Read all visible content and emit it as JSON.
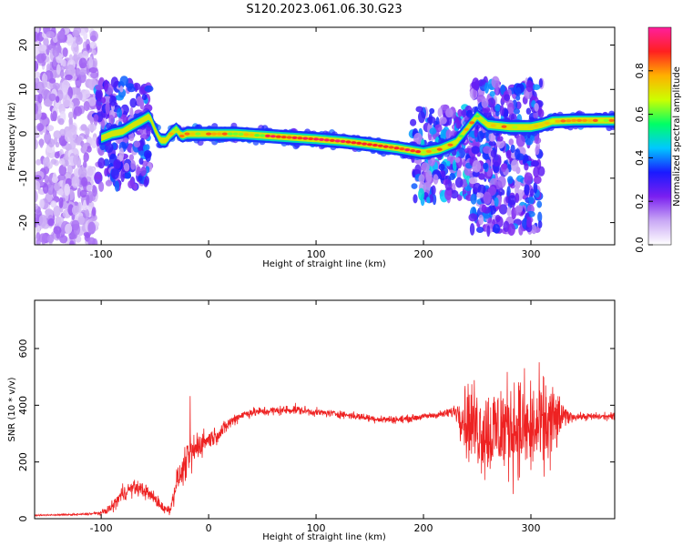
{
  "title": "S120.2023.061.06.30.G23",
  "colors": {
    "snr_line": "#ee2222",
    "colorbar_stops": [
      "#ffffff",
      "#c9a8f5",
      "#7a1ff0",
      "#1a1aff",
      "#00c8ff",
      "#00ff66",
      "#ccff00",
      "#ffb000",
      "#ff2020",
      "#ff1f9e"
    ]
  },
  "chart_data": [
    {
      "type": "heatmap",
      "xlabel": "Height of straight line (km)",
      "ylabel": "Frequency (Hz)",
      "xlim": [
        -162,
        378
      ],
      "ylim": [
        -25,
        24
      ],
      "x_ticks": [
        -100,
        0,
        100,
        200,
        300
      ],
      "y_ticks": [
        -20,
        -10,
        0,
        10,
        20
      ],
      "colorbar": {
        "label": "Normalized spectral amplitude",
        "range": [
          0,
          1
        ],
        "ticks": [
          0.0,
          0.2,
          0.4,
          0.6,
          0.8
        ]
      },
      "ridge": {
        "x": [
          -100,
          -90,
          -80,
          -70,
          -62,
          -55,
          -50,
          -45,
          -40,
          -35,
          -30,
          -25,
          -20,
          -10,
          0,
          25,
          50,
          75,
          100,
          125,
          150,
          175,
          200,
          215,
          230,
          240,
          250,
          260,
          280,
          300,
          310,
          320,
          340,
          378
        ],
        "y": [
          -1,
          0,
          0.5,
          2,
          3,
          4,
          1,
          -1.5,
          -1.5,
          0,
          1,
          -0.5,
          0,
          0,
          0,
          0,
          -0.4,
          -0.8,
          -1.2,
          -1.7,
          -2.4,
          -3.2,
          -4.2,
          -3.5,
          -2,
          1,
          4,
          2,
          1.5,
          1.5,
          2,
          2.8,
          3,
          3
        ]
      },
      "noise_regions": [
        {
          "x": [
            -162,
            -105
          ],
          "y": [
            -25,
            24
          ],
          "level": 0.15
        },
        {
          "x": [
            -105,
            -55
          ],
          "y": [
            -12,
            12
          ],
          "level": 0.35
        },
        {
          "x": [
            190,
            245
          ],
          "y": [
            -15,
            6
          ],
          "level": 0.4
        },
        {
          "x": [
            245,
            310
          ],
          "y": [
            -22,
            12
          ],
          "level": 0.35
        }
      ]
    },
    {
      "type": "line",
      "xlabel": "Height of straight line (km)",
      "ylabel": "SNR (10 * v/v)",
      "xlim": [
        -162,
        378
      ],
      "ylim": [
        0,
        770
      ],
      "x_ticks": [
        -100,
        0,
        100,
        200,
        300
      ],
      "y_ticks": [
        0,
        200,
        400,
        600
      ],
      "series": [
        {
          "x": [
            -162,
            -120,
            -100,
            -90,
            -80,
            -70,
            -60,
            -50,
            -40,
            -35,
            -30,
            -25,
            -20,
            -15,
            -10,
            0,
            10,
            20,
            30,
            40,
            60,
            80,
            100,
            120,
            140,
            160,
            180,
            200,
            220,
            230,
            240,
            260,
            280,
            300,
            320,
            330,
            340,
            360,
            378
          ],
          "values": [
            12,
            15,
            20,
            40,
            90,
            110,
            100,
            70,
            30,
            40,
            130,
            160,
            210,
            230,
            260,
            280,
            300,
            340,
            365,
            375,
            380,
            385,
            375,
            370,
            360,
            350,
            350,
            360,
            370,
            380,
            350,
            300,
            330,
            310,
            340,
            360,
            360,
            360,
            360
          ],
          "noise": [
            3,
            5,
            10,
            30,
            45,
            40,
            40,
            35,
            25,
            40,
            60,
            70,
            90,
            110,
            80,
            50,
            40,
            35,
            25,
            25,
            25,
            25,
            20,
            20,
            20,
            20,
            20,
            15,
            20,
            40,
            200,
            250,
            260,
            270,
            240,
            60,
            20,
            20,
            20
          ]
        }
      ]
    }
  ]
}
